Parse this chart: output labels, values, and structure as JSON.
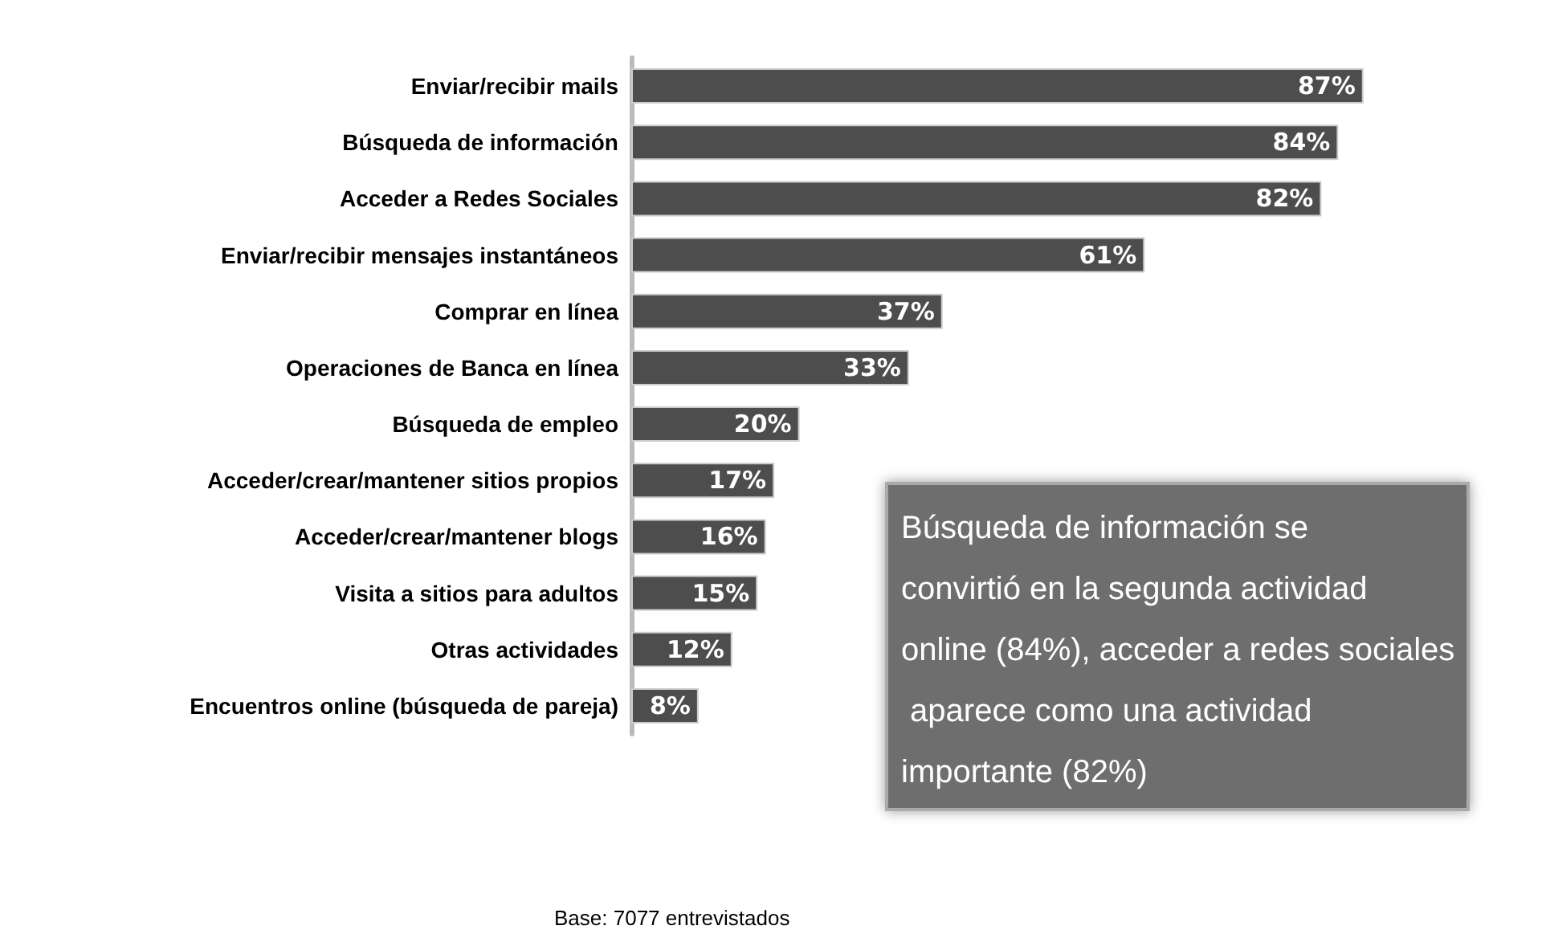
{
  "chart_data": {
    "type": "bar",
    "orientation": "horizontal",
    "categories": [
      "Enviar/recibir mails",
      "Búsqueda de información",
      "Acceder a Redes Sociales",
      "Enviar/recibir mensajes instantáneos",
      "Comprar en línea",
      "Operaciones de Banca en línea",
      "Búsqueda de empleo",
      "Acceder/crear/mantener sitios propios",
      "Acceder/crear/mantener blogs",
      "Visita a sitios para adultos",
      "Otras actividades",
      "Encuentros online (búsqueda de pareja)"
    ],
    "values": [
      87,
      84,
      82,
      61,
      37,
      33,
      20,
      17,
      16,
      15,
      12,
      8
    ],
    "value_labels": [
      "87%",
      "84%",
      "82%",
      "61%",
      "37%",
      "33%",
      "20%",
      "17%",
      "16%",
      "15%",
      "12%",
      "8%"
    ],
    "color": "#4d4d4d",
    "annotations": [
      "Búsqueda de información se convirtió en la segunda actividad online (84%), acceder a redes sociales aparece como una actividad importante (82%)",
      "Base: 7077 entrevistados"
    ]
  }
}
